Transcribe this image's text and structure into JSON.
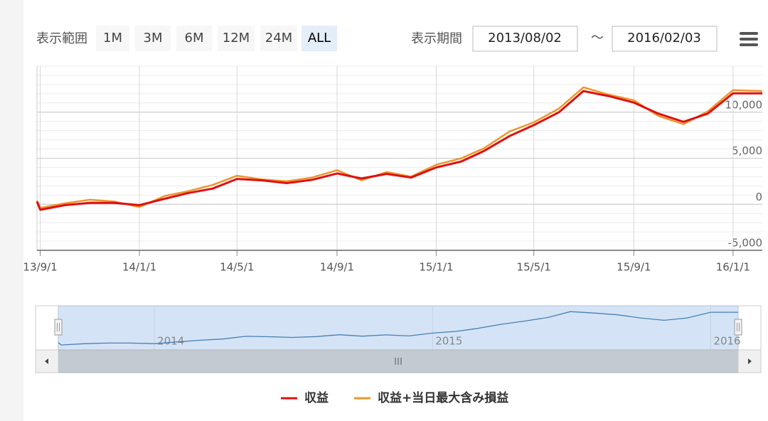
{
  "toolbar": {
    "range_label": "表示範囲",
    "range_buttons": [
      "1M",
      "3M",
      "6M",
      "12M",
      "24M",
      "ALL"
    ],
    "selected_range_index": 5,
    "period_label": "表示期間",
    "from": "2013/08/02",
    "separator": "～",
    "to": "2016/02/03"
  },
  "chart_data": {
    "type": "line",
    "x": [
      "2013-08-28",
      "2013-09-01",
      "2013-10-01",
      "2013-11-01",
      "2013-12-01",
      "2014-01-01",
      "2014-02-01",
      "2014-03-01",
      "2014-04-01",
      "2014-05-01",
      "2014-06-01",
      "2014-07-01",
      "2014-08-01",
      "2014-09-01",
      "2014-10-01",
      "2014-11-01",
      "2014-12-01",
      "2015-01-01",
      "2015-02-01",
      "2015-03-01",
      "2015-04-01",
      "2015-05-01",
      "2015-06-01",
      "2015-07-01",
      "2015-08-01",
      "2015-09-01",
      "2015-10-01",
      "2015-11-01",
      "2015-12-01",
      "2016-01-01",
      "2016-02-06"
    ],
    "series": [
      {
        "name": "収益",
        "color": "#dd1111",
        "values": [
          300,
          -600,
          -100,
          150,
          150,
          -100,
          600,
          1200,
          1700,
          2750,
          2600,
          2300,
          2650,
          3350,
          2800,
          3300,
          2900,
          4000,
          4650,
          5800,
          7400,
          8600,
          10000,
          12300,
          11750,
          11050,
          9850,
          8950,
          9850,
          12050,
          12050
        ]
      },
      {
        "name": "収益+当日最大含み損益",
        "color": "#f0952a",
        "values": [
          400,
          -400,
          100,
          500,
          300,
          -300,
          900,
          1400,
          2100,
          3100,
          2700,
          2500,
          2900,
          3700,
          2600,
          3500,
          3000,
          4300,
          5000,
          6100,
          7900,
          8900,
          10400,
          12700,
          11900,
          11300,
          9600,
          8700,
          10100,
          12400,
          12300
        ]
      }
    ],
    "xlim": [
      "2013-08-28",
      "2016-02-06"
    ],
    "xticks": [
      {
        "value": "2013-09-01",
        "label": "13/9/1"
      },
      {
        "value": "2014-01-01",
        "label": "14/1/1"
      },
      {
        "value": "2014-05-01",
        "label": "14/5/1"
      },
      {
        "value": "2014-09-01",
        "label": "14/9/1"
      },
      {
        "value": "2015-01-01",
        "label": "15/1/1"
      },
      {
        "value": "2015-05-01",
        "label": "15/5/1"
      },
      {
        "value": "2015-09-01",
        "label": "15/9/1"
      },
      {
        "value": "2016-01-01",
        "label": "16/1/1"
      }
    ],
    "ylim": [
      -5000,
      15000
    ],
    "yticks": [
      {
        "value": -5000,
        "label": "-5,000"
      },
      0,
      {
        "value": 5000,
        "label": "5,000"
      },
      {
        "value": 10000,
        "label": "10,000"
      }
    ],
    "y_minor_tick_interval": 1000,
    "grid": true,
    "navigator": {
      "series_index": 0,
      "color": "#4a7fb5",
      "ylim": [
        -2500,
        14000
      ],
      "xticks": [
        {
          "value": "2014-01-01",
          "label": "2014"
        },
        {
          "value": "2015-01-01",
          "label": "2015"
        },
        {
          "value": "2016-01-01",
          "label": "2016"
        }
      ]
    },
    "legend": "bottom"
  }
}
